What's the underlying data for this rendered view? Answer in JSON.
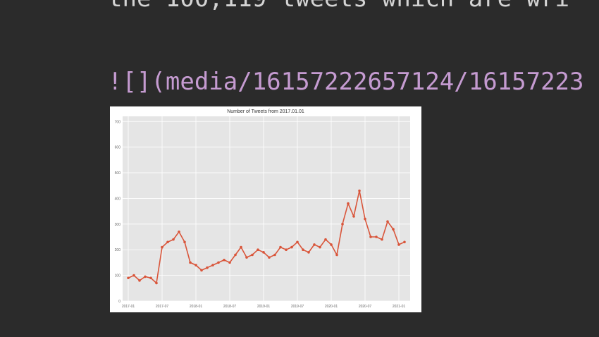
{
  "editor": {
    "top_line": "the 100,119 tweets which are wri",
    "markdown_line": "![](media/16157222657124/16157223"
  },
  "chart_data": {
    "type": "line",
    "title": "Number of Tweets from 2017.01.01",
    "xlabel": "",
    "ylabel": "",
    "x_ticks": [
      "2017-01",
      "2017-07",
      "2018-01",
      "2018-07",
      "2019-01",
      "2019-07",
      "2020-01",
      "2020-07",
      "2021-01"
    ],
    "y_ticks": [
      "0",
      "100",
      "200",
      "300",
      "400",
      "500",
      "600",
      "700"
    ],
    "ylim": [
      0,
      720
    ],
    "grid": true,
    "colors": {
      "line": "#d9553a",
      "plot_bg": "#e5e5e5",
      "grid": "#ffffff"
    },
    "series": [
      {
        "x": [
          "2017-01",
          "2017-02",
          "2017-03",
          "2017-04",
          "2017-05",
          "2017-06",
          "2017-07",
          "2017-08",
          "2017-09",
          "2017-10",
          "2017-11",
          "2017-12",
          "2018-01",
          "2018-02",
          "2018-03",
          "2018-04",
          "2018-05",
          "2018-06",
          "2018-07",
          "2018-08",
          "2018-09",
          "2018-10",
          "2018-11",
          "2018-12",
          "2019-01",
          "2019-02",
          "2019-03",
          "2019-04",
          "2019-05",
          "2019-06",
          "2019-07",
          "2019-08",
          "2019-09",
          "2019-10",
          "2019-11",
          "2019-12",
          "2020-01",
          "2020-02",
          "2020-03",
          "2020-04",
          "2020-05",
          "2020-06",
          "2020-07",
          "2020-08",
          "2020-09",
          "2020-10",
          "2020-11",
          "2020-12",
          "2021-01",
          "2021-02"
        ],
        "y": [
          90,
          100,
          80,
          95,
          90,
          70,
          210,
          230,
          240,
          270,
          230,
          150,
          140,
          120,
          130,
          140,
          150,
          160,
          150,
          180,
          210,
          170,
          180,
          200,
          190,
          170,
          180,
          210,
          200,
          210,
          230,
          200,
          190,
          220,
          210,
          240,
          220,
          180,
          300,
          380,
          330,
          430,
          320,
          250,
          250,
          240,
          310,
          280,
          220,
          230
        ]
      }
    ]
  }
}
